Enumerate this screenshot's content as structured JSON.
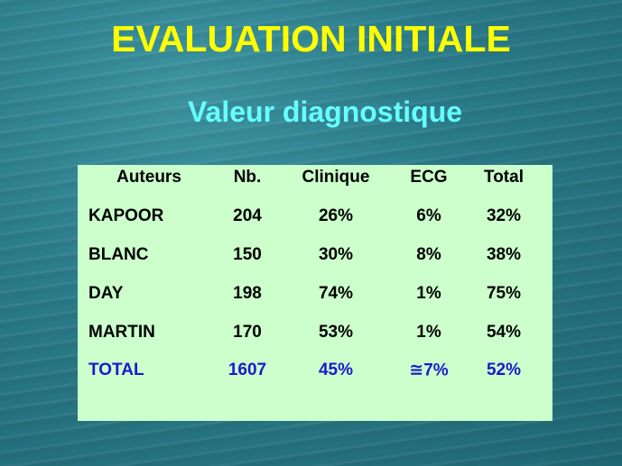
{
  "title": "EVALUATION INITIALE",
  "subtitle": "Valeur diagnostique",
  "table": {
    "header": [
      "Auteurs",
      "Nb.",
      "Clinique",
      "ECG",
      "Total"
    ],
    "rows": [
      [
        "KAPOOR",
        "204",
        "26%",
        "6%",
        "32%"
      ],
      [
        "BLANC",
        "150",
        "30%",
        "8%",
        "38%"
      ],
      [
        "DAY",
        "198",
        "74%",
        "1%",
        "75%"
      ],
      [
        "MARTIN",
        "170",
        "53%",
        "1%",
        "54%"
      ]
    ],
    "total": [
      "TOTAL",
      "1607",
      "45%",
      "≅7%",
      "52%"
    ]
  }
}
